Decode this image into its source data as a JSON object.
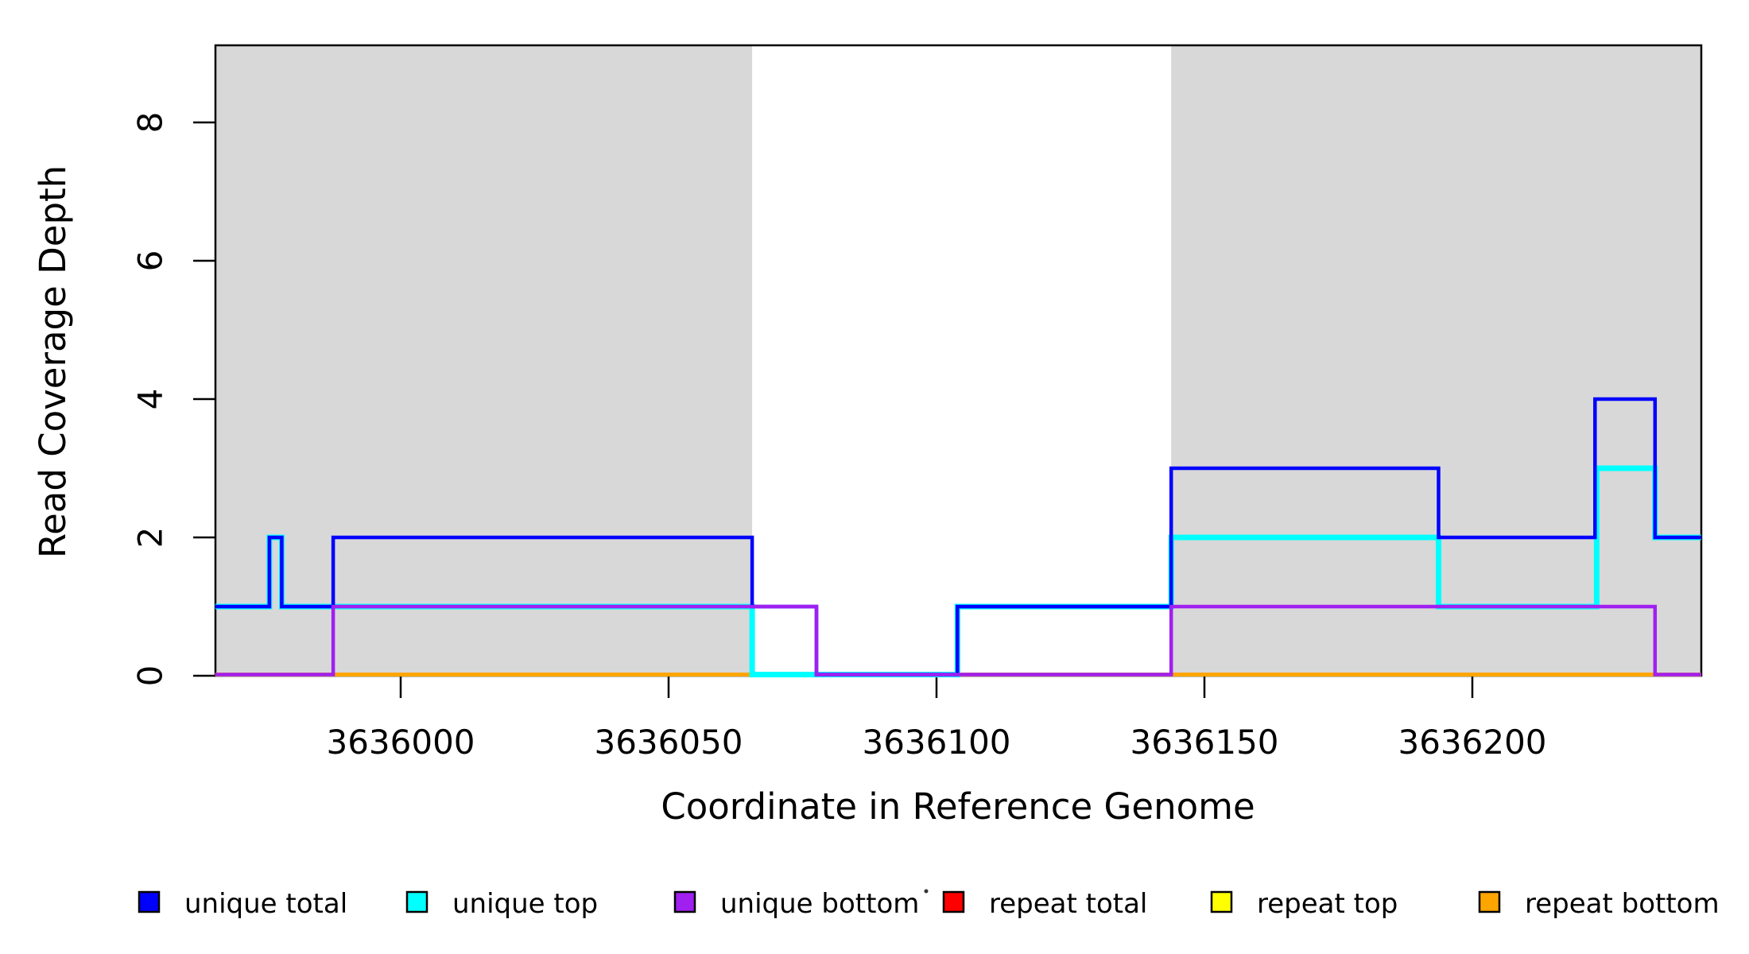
{
  "chart_data": {
    "type": "line",
    "subtype": "step",
    "title": "",
    "xlabel": "Coordinate in Reference Genome",
    "ylabel": "Read Coverage Depth",
    "x_ticks": [
      3636000,
      3636050,
      3636100,
      3636150,
      3636200
    ],
    "x_tick_labels": [
      "3636000",
      "3636050",
      "3636100",
      "3636150",
      "3636200"
    ],
    "y_ticks": [
      0,
      2,
      4,
      6,
      8
    ],
    "y_tick_labels": [
      "0",
      "2",
      "4",
      "6",
      "8"
    ],
    "xlim": [
      3635965.4,
      3636242.7
    ],
    "ylim": [
      0,
      9.1
    ],
    "grid": false,
    "axis_color": "#000000",
    "text_color": "#000000",
    "background_color": "#FFFFFF",
    "shaded_regions": [
      {
        "name": "shaded-region-left",
        "start": 3635965.4,
        "end": 3636065.6,
        "color": "#D8D8D8"
      },
      {
        "name": "shaded-region-right",
        "start": 3636143.8,
        "end": 3636242.7,
        "color": "#D8D8D8"
      }
    ],
    "series": [
      {
        "name": "unique_total",
        "label": "unique total",
        "color": "#0000FF",
        "steps": [
          [
            3635965.4,
            1
          ],
          [
            3635975.5,
            2
          ],
          [
            3635977.8,
            1
          ],
          [
            3635987.4,
            2
          ],
          [
            3636065.6,
            1
          ],
          [
            3636077.6,
            0
          ],
          [
            3636103.9,
            1
          ],
          [
            3636143.8,
            3
          ],
          [
            3636193.7,
            2
          ],
          [
            3636222.9,
            4
          ],
          [
            3636234.1,
            2
          ]
        ]
      },
      {
        "name": "unique_top",
        "label": "unique top",
        "color": "#00FFFF",
        "steps": [
          [
            3635965.4,
            1
          ],
          [
            3635975.5,
            2
          ],
          [
            3635977.8,
            1
          ],
          [
            3636065.6,
            0
          ],
          [
            3636103.9,
            1
          ],
          [
            3636143.8,
            2
          ],
          [
            3636193.7,
            1
          ],
          [
            3636223.2,
            3
          ],
          [
            3636234.1,
            2
          ]
        ]
      },
      {
        "name": "unique_bottom",
        "label": "unique bottom",
        "color": "#A020F0",
        "steps": [
          [
            3635965.4,
            0
          ],
          [
            3635987.4,
            1
          ],
          [
            3636077.6,
            0
          ],
          [
            3636143.8,
            1
          ],
          [
            3636234.1,
            0
          ]
        ]
      },
      {
        "name": "repeat_total",
        "label": "repeat total",
        "color": "#FF0000",
        "steps": [
          [
            3635965.4,
            0
          ]
        ]
      },
      {
        "name": "repeat_top",
        "label": "repeat top",
        "color": "#FFFF00",
        "steps": [
          [
            3635965.4,
            0
          ]
        ]
      },
      {
        "name": "repeat_bottom",
        "label": "repeat bottom",
        "color": "#FFA500",
        "steps": [
          [
            3635965.4,
            0
          ]
        ]
      }
    ],
    "legend": {
      "position": "bottom",
      "entries": [
        "unique total",
        "unique top",
        "unique bottom",
        "repeat total",
        "repeat top",
        "repeat bottom"
      ]
    }
  }
}
